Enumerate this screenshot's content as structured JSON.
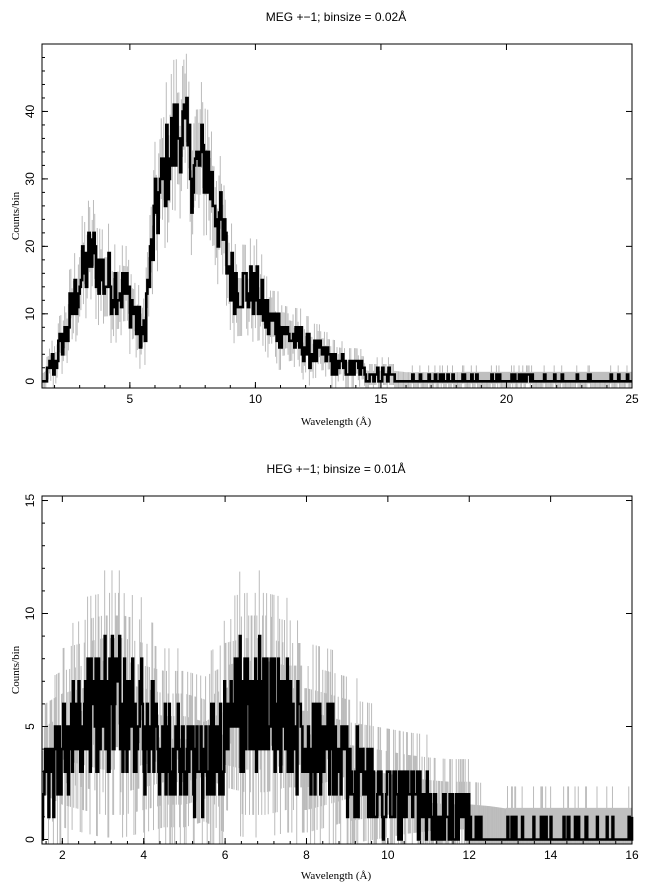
{
  "chart_data": [
    {
      "type": "line",
      "title": "MEG +−1; binsize = 0.02Å",
      "xlabel": "Wavelength (Å)",
      "ylabel": "Counts/bin",
      "xlim": [
        1.5,
        25
      ],
      "ylim": [
        -1,
        50
      ],
      "xticks": [
        5,
        10,
        15,
        20,
        25
      ],
      "yticks": [
        0,
        10,
        20,
        30,
        40
      ],
      "grid": false,
      "series": [
        {
          "style": "thick black histogram (counts) with grey error bars (model band)",
          "x": [
            1.5,
            2.0,
            2.5,
            3.0,
            3.5,
            4.0,
            4.5,
            5.0,
            5.5,
            6.0,
            6.5,
            7.0,
            7.5,
            8.0,
            8.5,
            9.0,
            9.5,
            10.0,
            10.5,
            11.0,
            11.5,
            12.0,
            12.5,
            13.0,
            13.5,
            14.0,
            14.5,
            15.0,
            15.5,
            16.0,
            17.0,
            18.0,
            19.0,
            20.0,
            21.0,
            22.0,
            23.0,
            24.0,
            25.0
          ],
          "y": [
            0,
            3,
            8,
            15,
            19,
            15,
            14,
            12,
            6,
            24,
            33,
            38,
            31,
            33,
            25,
            15,
            14,
            13,
            9,
            8,
            6,
            5,
            4,
            3,
            2,
            2,
            1,
            1,
            1,
            0.5,
            0.5,
            0.5,
            0.5,
            0.5,
            0.5,
            0.5,
            0.5,
            0.5,
            0.5
          ]
        }
      ]
    },
    {
      "type": "line",
      "title": "HEG +−1; binsize = 0.01Å",
      "xlabel": "Wavelength (Å)",
      "ylabel": "Counts/bin",
      "xlim": [
        1.5,
        16
      ],
      "ylim": [
        -0.2,
        15.2
      ],
      "xticks": [
        2,
        4,
        6,
        8,
        10,
        12,
        14,
        16
      ],
      "yticks": [
        0,
        5,
        10,
        15
      ],
      "grid": false,
      "series": [
        {
          "style": "thick black histogram (counts) with grey error bars (model band)",
          "x": [
            1.5,
            2.0,
            2.5,
            3.0,
            3.5,
            4.0,
            4.5,
            5.0,
            5.5,
            6.0,
            6.5,
            7.0,
            7.5,
            8.0,
            8.5,
            9.0,
            9.5,
            10.0,
            10.5,
            11.0,
            11.5,
            12.0,
            12.5,
            13.0,
            13.5,
            14.0,
            14.5,
            15.0,
            15.5,
            16.0
          ],
          "y": [
            2,
            4,
            5,
            6,
            6,
            5,
            4,
            4,
            3,
            5,
            6,
            6,
            5,
            5,
            4,
            3,
            2.5,
            2,
            1.5,
            1.2,
            1,
            1,
            0.8,
            0.5,
            0.5,
            0.5,
            0.5,
            0.5,
            0.5,
            0.5
          ]
        }
      ]
    }
  ]
}
